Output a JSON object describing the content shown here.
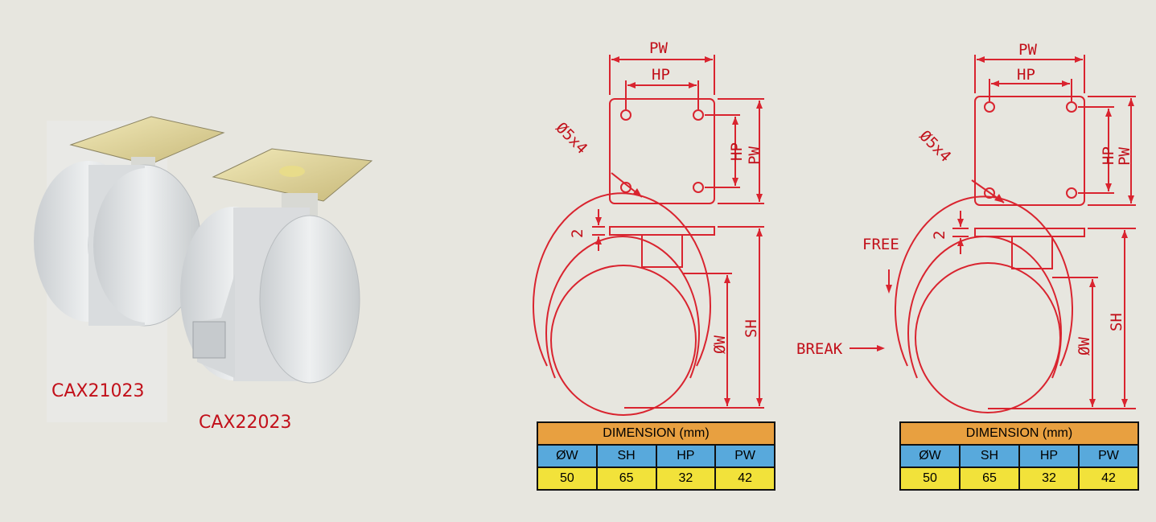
{
  "products": [
    {
      "code": "CAX21023"
    },
    {
      "code": "CAX22023"
    }
  ],
  "drawing_labels": {
    "pw": "PW",
    "hp": "HP",
    "hole": "Ø5x4",
    "thickness": "2",
    "wheel_dia": "ØW",
    "height": "SH",
    "free": "FREE",
    "brake": "BREAK"
  },
  "tables": [
    {
      "header": "DIMENSION (mm)",
      "columns": [
        "ØW",
        "SH",
        "HP",
        "PW"
      ],
      "values": [
        "50",
        "65",
        "32",
        "42"
      ]
    },
    {
      "header": "DIMENSION (mm)",
      "columns": [
        "ØW",
        "SH",
        "HP",
        "PW"
      ],
      "values": [
        "50",
        "65",
        "32",
        "42"
      ]
    }
  ],
  "colors": {
    "line": "#d9242f",
    "label": "#c2101a",
    "table_header": "#e8a040",
    "table_columns": "#58a9dc",
    "table_values": "#f2e23a"
  }
}
